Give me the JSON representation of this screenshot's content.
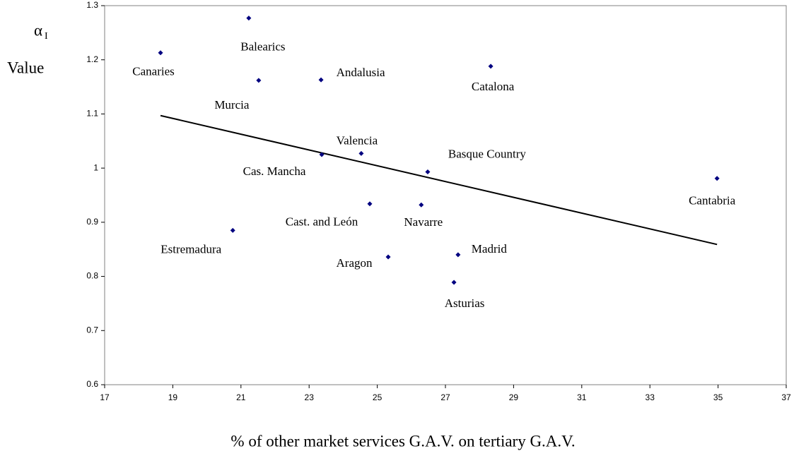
{
  "chart_data": {
    "type": "scatter",
    "y_label_symbol": "α",
    "y_label_subscript": "I",
    "y_label": "Value",
    "x_label": "% of other market services G.A.V. on tertiary G.A.V.",
    "labels": [
      "Canaries",
      "Balearics",
      "Murcia",
      "Andalusia",
      "Catalona",
      "Valencia",
      "Cas. Mancha",
      "Basque Country",
      "Cantabria",
      "Cast. and León",
      "Navarre",
      "Estremadura",
      "Aragon",
      "Madrid",
      "Asturias"
    ],
    "x": [
      18.64,
      21.23,
      21.52,
      23.35,
      28.33,
      24.53,
      23.37,
      26.48,
      34.97,
      24.78,
      26.29,
      20.76,
      25.32,
      27.37,
      27.25
    ],
    "values": [
      1.213,
      1.277,
      1.162,
      1.163,
      1.188,
      1.027,
      1.025,
      0.993,
      0.981,
      0.934,
      0.932,
      0.885,
      0.836,
      0.84,
      0.789
    ],
    "color": "#000080",
    "trendline": {
      "x": [
        18.64,
        34.97
      ],
      "values": [
        1.097,
        0.859
      ],
      "color": "#000000"
    },
    "xlim": [
      17,
      37
    ],
    "xticks": [
      17,
      19,
      21,
      23,
      25,
      27,
      29,
      31,
      33,
      35,
      37
    ],
    "ylim": [
      0.6,
      1.3
    ],
    "yticks": [
      0.6,
      0.7,
      0.8,
      0.9,
      1,
      1.1,
      1.2,
      1.3
    ],
    "grid": false
  }
}
